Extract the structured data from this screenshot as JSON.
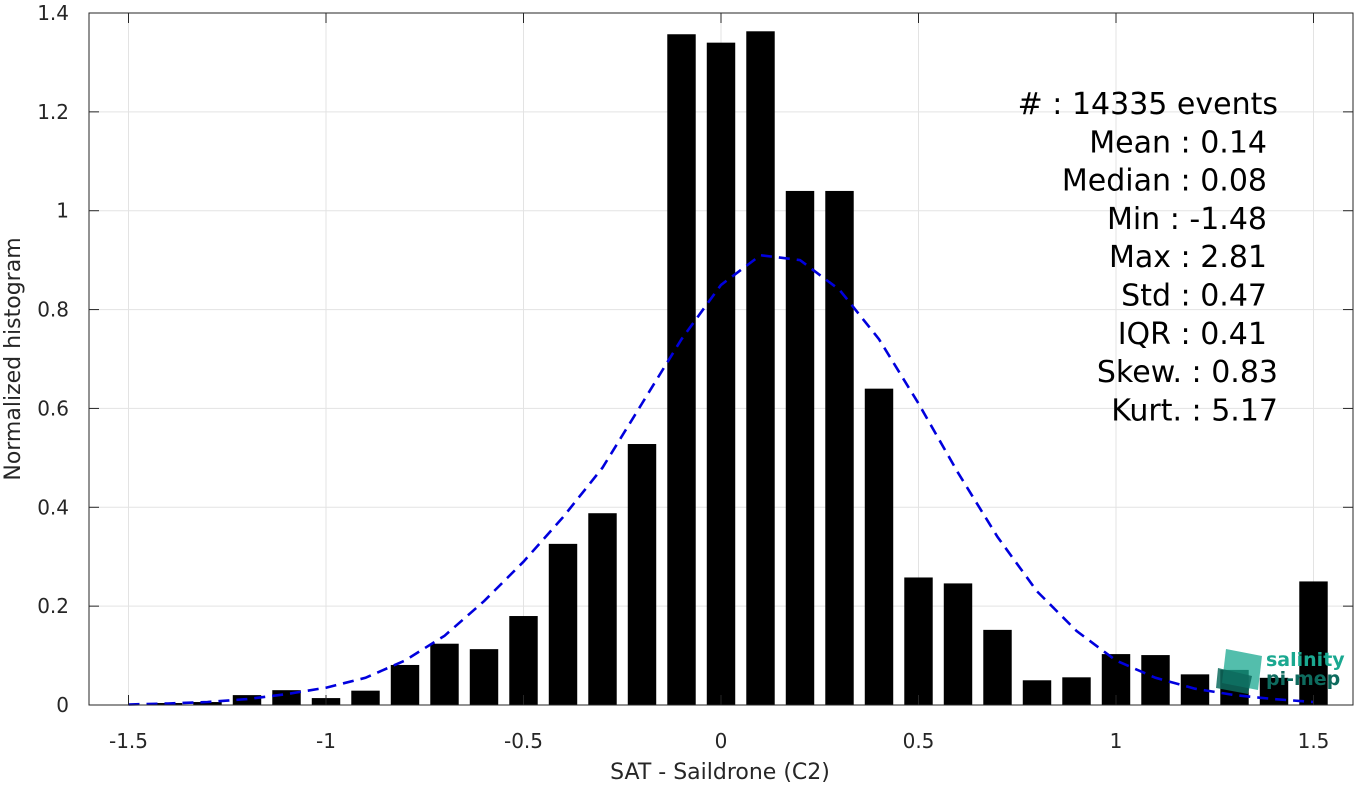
{
  "chart_data": {
    "type": "bar",
    "xlabel": "SAT - Saildrone (C2)",
    "ylabel": "Normalized histogram",
    "xlim": [
      -1.6,
      1.6
    ],
    "ylim": [
      0,
      1.4
    ],
    "xticks": [
      -1.5,
      -1,
      -0.5,
      0,
      0.5,
      1,
      1.5
    ],
    "xtick_labels": [
      "-1.5",
      "-1",
      "-0.5",
      "0",
      "0.5",
      "1",
      "1.5"
    ],
    "yticks": [
      0,
      0.2,
      0.4,
      0.6,
      0.8,
      1,
      1.2,
      1.4
    ],
    "ytick_labels": [
      "0",
      "0.2",
      "0.4",
      "0.6",
      "0.8",
      "1",
      "1.2",
      "1.4"
    ],
    "grid": true,
    "bar_color": "#000000",
    "bin_width": 0.1,
    "bin_centers": [
      -1.5,
      -1.4,
      -1.3,
      -1.2,
      -1.1,
      -1.0,
      -0.9,
      -0.8,
      -0.7,
      -0.6,
      -0.5,
      -0.4,
      -0.3,
      -0.2,
      -0.1,
      0.0,
      0.1,
      0.2,
      0.3,
      0.4,
      0.5,
      0.6,
      0.7,
      0.8,
      0.9,
      1.0,
      1.1,
      1.2,
      1.3,
      1.4,
      1.5
    ],
    "values": [
      0.001,
      0.004,
      0.006,
      0.02,
      0.03,
      0.014,
      0.029,
      0.081,
      0.124,
      0.113,
      0.18,
      0.326,
      0.388,
      0.528,
      1.357,
      1.34,
      1.363,
      1.04,
      1.04,
      0.64,
      0.258,
      0.246,
      0.152,
      0.05,
      0.056,
      0.103,
      0.101,
      0.062,
      0.071,
      0.055,
      0.25
    ],
    "fit_curve": {
      "style": "dashed",
      "color": "#0000dd",
      "x": [
        -1.5,
        -1.4,
        -1.3,
        -1.2,
        -1.1,
        -1.0,
        -0.9,
        -0.8,
        -0.7,
        -0.6,
        -0.5,
        -0.4,
        -0.3,
        -0.2,
        -0.1,
        0.0,
        0.1,
        0.2,
        0.3,
        0.4,
        0.5,
        0.6,
        0.7,
        0.8,
        0.9,
        1.0,
        1.1,
        1.2,
        1.3,
        1.4,
        1.5
      ],
      "y": [
        0.001,
        0.003,
        0.006,
        0.012,
        0.022,
        0.035,
        0.055,
        0.09,
        0.14,
        0.21,
        0.29,
        0.38,
        0.48,
        0.61,
        0.74,
        0.85,
        0.91,
        0.9,
        0.84,
        0.74,
        0.61,
        0.47,
        0.34,
        0.23,
        0.15,
        0.09,
        0.055,
        0.033,
        0.02,
        0.012,
        0.006
      ]
    },
    "stats": [
      "#  : 14335 events",
      "Mean : 0.14",
      "Median : 0.08",
      "Min : -1.48",
      "Max : 2.81",
      "Std : 0.47",
      "IQR : 0.41",
      "Skew. : 0.83",
      "Kurt. : 5.17"
    ]
  },
  "logo": {
    "line1": "salinity",
    "line2": "pi-mep",
    "color": "#1aa890",
    "dark_color": "#0e6b5e"
  }
}
